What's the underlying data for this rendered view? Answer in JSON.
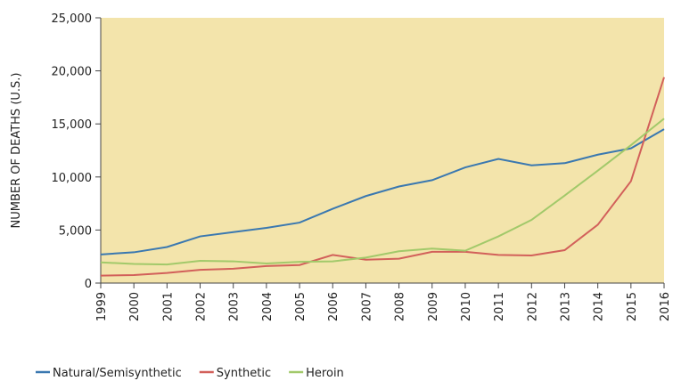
{
  "chart_data": {
    "type": "line",
    "y_label": "NUMBER OF DEATHS (U.S.)",
    "categories": [
      "1999",
      "2000",
      "2001",
      "2002",
      "2003",
      "2004",
      "2005",
      "2006",
      "2007",
      "2008",
      "2009",
      "2010",
      "2011",
      "2012",
      "2013",
      "2014",
      "2015",
      "2016"
    ],
    "series": [
      {
        "name": "Natural/Semisynthetic",
        "color": "#3a78b0",
        "values": [
          2700,
          2900,
          3400,
          4400,
          4800,
          5200,
          5700,
          7000,
          8200,
          9100,
          9700,
          10900,
          11700,
          11100,
          11300,
          12100,
          12700,
          14500
        ]
      },
      {
        "name": "Synthetic",
        "color": "#d2605a",
        "values": [
          700,
          750,
          950,
          1250,
          1350,
          1600,
          1700,
          2650,
          2200,
          2300,
          2950,
          2950,
          2650,
          2600,
          3100,
          5500,
          9600,
          19400
        ]
      },
      {
        "name": "Heroin",
        "color": "#a2c96a",
        "values": [
          1950,
          1800,
          1750,
          2100,
          2050,
          1850,
          2000,
          2050,
          2400,
          3000,
          3250,
          3050,
          4400,
          5950,
          8250,
          10600,
          13000,
          15500
        ]
      }
    ],
    "ylim": [
      0,
      25000
    ],
    "yticks": [
      0,
      {
        "value": 5000,
        "label": "5,000"
      },
      {
        "value": 10000,
        "label": "10,000"
      },
      {
        "value": 15000,
        "label": "15,000"
      },
      {
        "value": 20000,
        "label": "20,000"
      },
      {
        "value": 25000,
        "label": "25,000"
      }
    ],
    "background": "#f3e4ab",
    "legend": "bottom-left"
  }
}
